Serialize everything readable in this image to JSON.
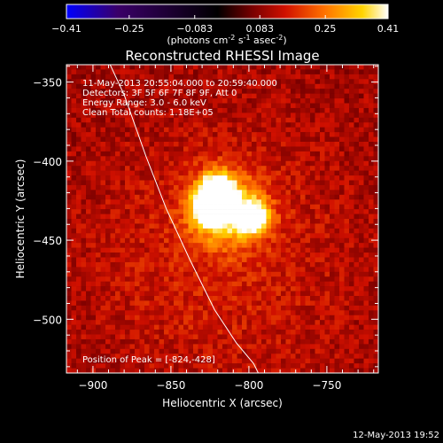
{
  "colorbar": {
    "ticks": [
      "-0.41",
      "-0.25",
      "-0.083",
      "0.083",
      "0.25",
      "0.41"
    ],
    "tick_values": [
      -0.41,
      -0.25,
      -0.083,
      0.083,
      0.25,
      0.41
    ],
    "range": [
      -0.41,
      0.41
    ],
    "units_prefix": "(photons cm",
    "units_exp1": "-2",
    "units_mid": " s",
    "units_exp2": "-1",
    "units_mid2": " asec",
    "units_exp3": "-2",
    "units_suffix": ")"
  },
  "info": {
    "line1": "11-May-2013 20:55:04.000 to 20:59:40.000",
    "line2": "Detectors: 3F 5F 6F 7F 8F 9F, Att 0",
    "line3": "Energy Range: 3.0 - 6.0 keV",
    "line4": "Clean    Total counts: 1.18E+05"
  },
  "footer": {
    "peak_label": "Position of Peak = [-824,-428]",
    "timestamp": "12-May-2013 19:52"
  },
  "colors": {
    "background": "#000000",
    "limb": "#ffffff",
    "colormap": [
      "#0000ff",
      "#3a0068",
      "#000000",
      "#7a0000",
      "#d01000",
      "#ff7000",
      "#ffd400",
      "#ffffff"
    ]
  },
  "chart_data": {
    "type": "heatmap",
    "title": "Reconstructed RHESSI Image",
    "xlabel": "Heliocentric X (arcsec)",
    "ylabel": "Heliocentric Y (arcsec)",
    "xlim": [
      -917,
      -717
    ],
    "ylim": [
      -534,
      -339
    ],
    "xticks": [
      -900,
      -850,
      -800,
      -750
    ],
    "yticks": [
      -350,
      -400,
      -450,
      -500
    ],
    "grid": false,
    "background_level": 0.1,
    "sources": [
      {
        "x": -824,
        "y": -428,
        "peak": 0.41,
        "sigma": 8
      },
      {
        "x": -820,
        "y": -418,
        "peak": 0.3,
        "sigma": 7
      },
      {
        "x": -797,
        "y": -436,
        "peak": 0.35,
        "sigma": 7
      },
      {
        "x": -815,
        "y": -430,
        "peak": 0.24,
        "sigma": 16
      },
      {
        "x": -818,
        "y": -460,
        "peak": 0.06,
        "sigma": 60
      }
    ],
    "limb": [
      [
        -889,
        -339
      ],
      [
        -880,
        -358
      ],
      [
        -866,
        -397
      ],
      [
        -853,
        -430
      ],
      [
        -838,
        -462
      ],
      [
        -822,
        -494
      ],
      [
        -808,
        -515
      ],
      [
        -797,
        -528
      ],
      [
        -794,
        -534
      ]
    ],
    "peak_position": [
      -824,
      -428
    ]
  }
}
